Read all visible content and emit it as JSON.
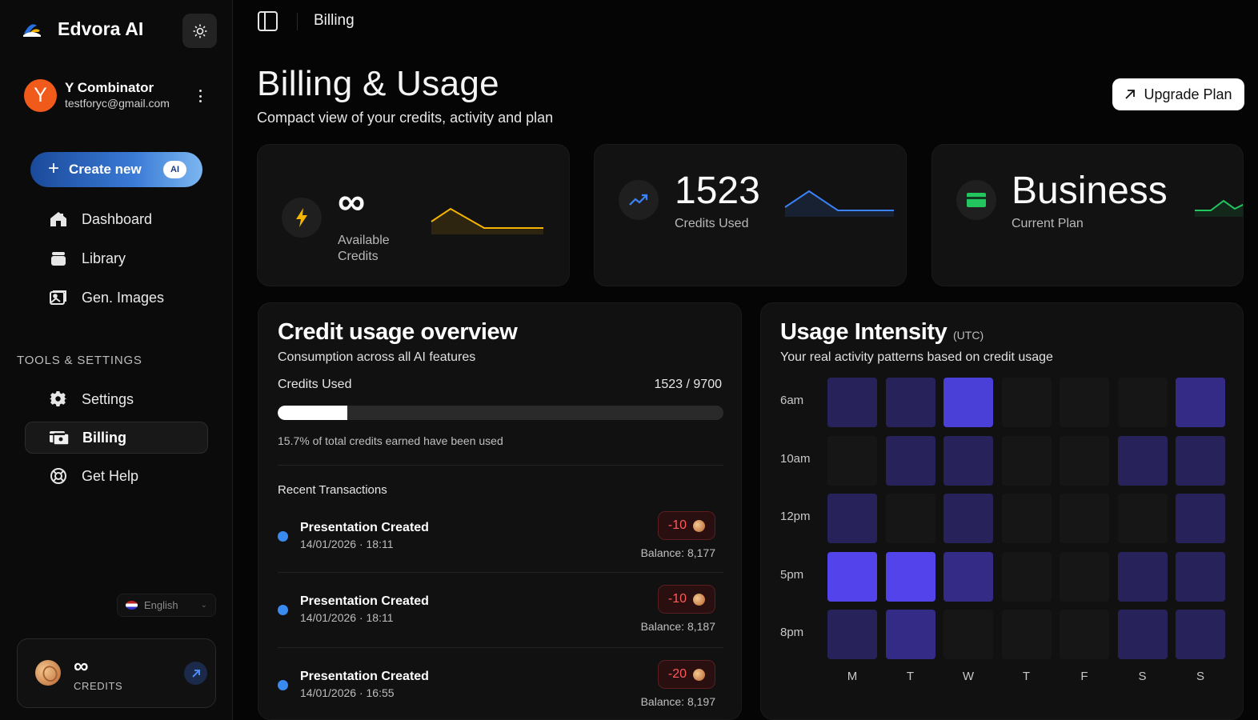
{
  "app": {
    "name": "Edvora AI"
  },
  "user": {
    "initial": "Y",
    "name": "Y Combinator",
    "email": "testforyc@gmail.com"
  },
  "sidebar": {
    "create": {
      "label": "Create new",
      "badge": "AI"
    },
    "items": [
      {
        "label": "Dashboard",
        "icon": "dashboard-icon"
      },
      {
        "label": "Library",
        "icon": "library-icon"
      },
      {
        "label": "Gen. Images",
        "icon": "images-icon"
      }
    ],
    "section_label": "TOOLS & SETTINGS",
    "tools": [
      {
        "label": "Settings",
        "icon": "gear-icon"
      },
      {
        "label": "Billing",
        "icon": "billing-icon",
        "active": true
      },
      {
        "label": "Get Help",
        "icon": "help-icon"
      }
    ],
    "language": "English",
    "credits": {
      "value": "∞",
      "label": "CREDITS"
    }
  },
  "topbar": {
    "title": "Billing"
  },
  "header": {
    "title": "Billing & Usage",
    "subtitle": "Compact view of your credits, activity and plan",
    "upgrade_label": "Upgrade Plan"
  },
  "stats": {
    "available": {
      "value": "∞",
      "label_line1": "Available",
      "label_line2": "Credits",
      "color": "#f5b400"
    },
    "used": {
      "value": "1523",
      "label": "Credits Used",
      "color": "#3b82f6"
    },
    "plan": {
      "value": "Business",
      "label": "Current Plan",
      "color": "#22c55e"
    }
  },
  "overview": {
    "title": "Credit usage overview",
    "subtitle": "Consumption across all AI features",
    "used_label": "Credits Used",
    "used_value": "1523 / 9700",
    "progress_fraction": 0.157,
    "note": "15.7% of total credits earned have been used",
    "recent_label": "Recent Transactions",
    "transactions": [
      {
        "title": "Presentation Created",
        "time": "14/01/2026 · 18:11",
        "amount": "-10",
        "balance": "Balance: 8,177"
      },
      {
        "title": "Presentation Created",
        "time": "14/01/2026 · 18:11",
        "amount": "-10",
        "balance": "Balance: 8,187"
      },
      {
        "title": "Presentation Created",
        "time": "14/01/2026 · 16:55",
        "amount": "-20",
        "balance": "Balance: 8,197"
      }
    ]
  },
  "intensity": {
    "title": "Usage Intensity",
    "utc": "(UTC)",
    "subtitle": "Your real activity patterns based on credit usage",
    "rows": [
      "6am",
      "10am",
      "12pm",
      "5pm",
      "8pm"
    ],
    "cols": [
      "M",
      "T",
      "W",
      "T",
      "F",
      "S",
      "S"
    ],
    "levels": [
      [
        1,
        1,
        3,
        0,
        0,
        0,
        2
      ],
      [
        0,
        1,
        1,
        0,
        0,
        1,
        1
      ],
      [
        1,
        0,
        1,
        0,
        0,
        0,
        1
      ],
      [
        4,
        4,
        2,
        0,
        0,
        1,
        1
      ],
      [
        1,
        2,
        0,
        0,
        0,
        1,
        1
      ]
    ],
    "level_colors": [
      "#161616",
      "#27225a",
      "#332b86",
      "#4a3fd6",
      "#5244ea"
    ]
  }
}
